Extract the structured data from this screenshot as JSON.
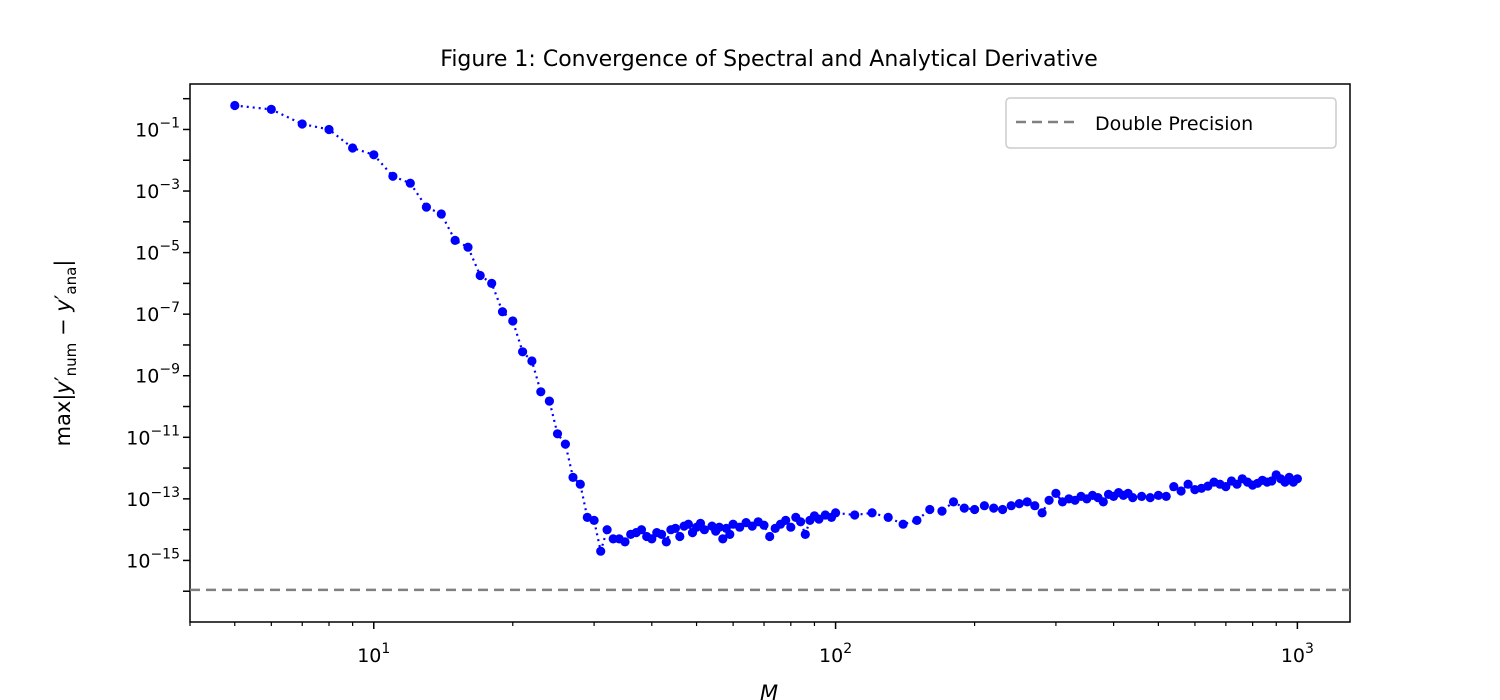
{
  "chart_data": {
    "type": "scatter",
    "title": "Figure 1: Convergence of Spectral and Analytical Derivative",
    "xlabel": "M",
    "ylabel": "max|y′num − y′ana|",
    "xscale": "log",
    "yscale": "log",
    "xlim": [
      4,
      1300
    ],
    "ylim": [
      1e-17,
      3
    ],
    "x_ticks": [
      {
        "base": "10",
        "exp": "1"
      },
      {
        "base": "10",
        "exp": "2"
      },
      {
        "base": "10",
        "exp": "3"
      }
    ],
    "y_ticks": [
      {
        "base": "10",
        "exp": "−1"
      },
      {
        "base": "10",
        "exp": "−3"
      },
      {
        "base": "10",
        "exp": "−5"
      },
      {
        "base": "10",
        "exp": "−7"
      },
      {
        "base": "10",
        "exp": "−9"
      },
      {
        "base": "10",
        "exp": "−11"
      },
      {
        "base": "10",
        "exp": "−13"
      },
      {
        "base": "10",
        "exp": "−15"
      }
    ],
    "legend": {
      "position": "upper-right",
      "entries": [
        "Double Precision"
      ]
    },
    "reference_line": {
      "name": "Double Precision",
      "y": 1.11e-16,
      "style": "dashed",
      "color": "#808080"
    },
    "series": [
      {
        "color": "#0000ff",
        "marker": "dot",
        "linestyle": "dotted",
        "points": [
          [
            5,
            0.6
          ],
          [
            6,
            0.45
          ],
          [
            7,
            0.15
          ],
          [
            8,
            0.1
          ],
          [
            9,
            0.025
          ],
          [
            10,
            0.015
          ],
          [
            11,
            0.003
          ],
          [
            12,
            0.0018
          ],
          [
            13,
            0.0003
          ],
          [
            14,
            0.00018
          ],
          [
            15,
            2.5e-05
          ],
          [
            16,
            1.5e-05
          ],
          [
            17,
            1.8e-06
          ],
          [
            18,
            1e-06
          ],
          [
            19,
            1.2e-07
          ],
          [
            20,
            6e-08
          ],
          [
            21,
            6e-09
          ],
          [
            22,
            3e-09
          ],
          [
            23,
            3e-10
          ],
          [
            24,
            1.5e-10
          ],
          [
            25,
            1.3e-11
          ],
          [
            26,
            6e-12
          ],
          [
            27,
            5e-13
          ],
          [
            28,
            3e-13
          ],
          [
            29,
            2.5e-14
          ],
          [
            30,
            2e-14
          ],
          [
            31,
            2e-15
          ],
          [
            32,
            1e-14
          ],
          [
            33,
            5e-15
          ],
          [
            34,
            5e-15
          ],
          [
            35,
            4e-15
          ],
          [
            36,
            7e-15
          ],
          [
            37,
            8e-15
          ],
          [
            38,
            1e-14
          ],
          [
            39,
            6e-15
          ],
          [
            40,
            5e-15
          ],
          [
            41,
            8e-15
          ],
          [
            42,
            7e-15
          ],
          [
            43,
            4e-15
          ],
          [
            44,
            1e-14
          ],
          [
            45,
            1.1e-14
          ],
          [
            46,
            6e-15
          ],
          [
            47,
            1.3e-14
          ],
          [
            48,
            1.5e-14
          ],
          [
            49,
            8e-15
          ],
          [
            50,
            1.2e-14
          ],
          [
            51,
            1.6e-14
          ],
          [
            52,
            1e-14
          ],
          [
            54,
            1.3e-14
          ],
          [
            55,
            9e-15
          ],
          [
            56,
            1.2e-14
          ],
          [
            57,
            5e-15
          ],
          [
            58,
            1.1e-14
          ],
          [
            59,
            7e-15
          ],
          [
            60,
            1.5e-14
          ],
          [
            62,
            1.2e-14
          ],
          [
            64,
            1.7e-14
          ],
          [
            66,
            1.3e-14
          ],
          [
            68,
            1.8e-14
          ],
          [
            70,
            1.4e-14
          ],
          [
            72,
            6e-15
          ],
          [
            74,
            1.1e-14
          ],
          [
            76,
            1.5e-14
          ],
          [
            78,
            2e-14
          ],
          [
            80,
            1.2e-14
          ],
          [
            82,
            2.5e-14
          ],
          [
            84,
            1.8e-14
          ],
          [
            86,
            7e-15
          ],
          [
            88,
            2e-14
          ],
          [
            90,
            2.8e-14
          ],
          [
            92,
            2.2e-14
          ],
          [
            95,
            3e-14
          ],
          [
            98,
            2.5e-14
          ],
          [
            100,
            3.5e-14
          ],
          [
            110,
            3e-14
          ],
          [
            120,
            3.5e-14
          ],
          [
            130,
            2.5e-14
          ],
          [
            140,
            1.5e-14
          ],
          [
            150,
            2e-14
          ],
          [
            160,
            4.5e-14
          ],
          [
            170,
            4e-14
          ],
          [
            180,
            8e-14
          ],
          [
            190,
            5e-14
          ],
          [
            200,
            4.5e-14
          ],
          [
            210,
            6e-14
          ],
          [
            220,
            5e-14
          ],
          [
            230,
            4.5e-14
          ],
          [
            240,
            6e-14
          ],
          [
            250,
            7e-14
          ],
          [
            260,
            8e-14
          ],
          [
            270,
            6e-14
          ],
          [
            280,
            3.5e-14
          ],
          [
            290,
            9e-14
          ],
          [
            300,
            1.5e-13
          ],
          [
            310,
            8e-14
          ],
          [
            320,
            1e-13
          ],
          [
            330,
            9e-14
          ],
          [
            340,
            1.2e-13
          ],
          [
            350,
            1e-13
          ],
          [
            360,
            1.3e-13
          ],
          [
            370,
            1.1e-13
          ],
          [
            380,
            8e-14
          ],
          [
            390,
            1.4e-13
          ],
          [
            400,
            1.2e-13
          ],
          [
            410,
            1.6e-13
          ],
          [
            420,
            1.3e-13
          ],
          [
            430,
            1.5e-13
          ],
          [
            440,
            1.1e-13
          ],
          [
            460,
            1.2e-13
          ],
          [
            480,
            1.1e-13
          ],
          [
            500,
            1.3e-13
          ],
          [
            520,
            1.2e-13
          ],
          [
            540,
            2.5e-13
          ],
          [
            560,
            1.8e-13
          ],
          [
            580,
            3e-13
          ],
          [
            600,
            2e-13
          ],
          [
            620,
            2.2e-13
          ],
          [
            640,
            2.6e-13
          ],
          [
            660,
            3.5e-13
          ],
          [
            680,
            3e-13
          ],
          [
            700,
            2.5e-13
          ],
          [
            720,
            3.8e-13
          ],
          [
            740,
            3e-13
          ],
          [
            760,
            4.5e-13
          ],
          [
            780,
            3.5e-13
          ],
          [
            800,
            2.8e-13
          ],
          [
            820,
            3.2e-13
          ],
          [
            840,
            4e-13
          ],
          [
            860,
            3.5e-13
          ],
          [
            880,
            3.8e-13
          ],
          [
            900,
            6e-13
          ],
          [
            920,
            4.5e-13
          ],
          [
            940,
            3.5e-13
          ],
          [
            960,
            5e-13
          ],
          [
            980,
            3.5e-13
          ],
          [
            1000,
            4.5e-13
          ]
        ]
      }
    ]
  }
}
